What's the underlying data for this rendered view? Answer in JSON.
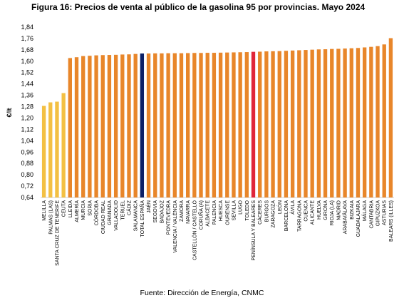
{
  "title": "Figura 16: Precios de venta al público de la gasolina 95 por provincias. Mayo 2024",
  "source": "Fuente: Dirección de Energía, CNMC",
  "colors": {
    "yellow": "#f3c043",
    "orange": "#e8862a",
    "navy": "#0b1f66",
    "red": "#e0263a"
  },
  "chart_data": {
    "type": "bar",
    "title": "Figura 16: Precios de venta al público de la gasolina 95 por provincias. Mayo 2024",
    "ylabel": "€/lt",
    "xlabel": "",
    "ylim": [
      0.64,
      1.84
    ],
    "yticks": [
      "0,64",
      "0,72",
      "0,80",
      "0,88",
      "0,96",
      "1,04",
      "1,12",
      "1,20",
      "1,28",
      "1,36",
      "1,44",
      "1,52",
      "1,60",
      "1,68",
      "1,76",
      "1,84"
    ],
    "grid": false,
    "legend": "none",
    "categories": [
      "MELILLA",
      "PALMAS (LAS)",
      "SANTA CRUZ DE TENERIFE",
      "CEUTA",
      "LLEIDA",
      "ALMERÍA",
      "MURCIA",
      "SORIA",
      "CÓRDOBA",
      "CIUDAD REAL",
      "GRANADA",
      "VALLADOLID",
      "TERUEL",
      "CÁDIZ",
      "SALAMANCA",
      "TOTAL ESPAÑA",
      "JAÉN",
      "SEGOVIA",
      "BADAJOZ",
      "PONTEVEDRA",
      "VALENCIA / VALÈNCIA",
      "ZAMORA",
      "NAVARRA",
      "CASTELLÓN / CASTELLÓ",
      "CORUÑA (A)",
      "ALBACETE",
      "PALENCIA",
      "HUESCA",
      "OURENSE",
      "SEVILLA",
      "LUGO",
      "TOLEDO",
      "PENÍNSULA Y BALEARES",
      "CÁCERES",
      "BURGOS",
      "ZARAGOZA",
      "LEÓN",
      "BARCELONA",
      "ÁVILA",
      "TARRAGONA",
      "CUENCA",
      "ALICANTE",
      "HUELVA",
      "GIRONA",
      "RIOJA (LA)",
      "MADRID",
      "ARABA/ÁLAVA",
      "BIZKAIA",
      "GUADALAJARA",
      "MÁLAGA",
      "CANTABRIA",
      "GIPUZKOA",
      "ASTURIAS",
      "BALEARS (ILLES)"
    ],
    "values": [
      1.285,
      1.31,
      1.315,
      1.375,
      1.622,
      1.628,
      1.636,
      1.638,
      1.641,
      1.643,
      1.644,
      1.645,
      1.647,
      1.648,
      1.651,
      1.654,
      1.654,
      1.655,
      1.655,
      1.656,
      1.656,
      1.656,
      1.657,
      1.658,
      1.658,
      1.659,
      1.659,
      1.66,
      1.661,
      1.662,
      1.663,
      1.664,
      1.666,
      1.667,
      1.669,
      1.67,
      1.671,
      1.673,
      1.675,
      1.677,
      1.679,
      1.681,
      1.683,
      1.684,
      1.686,
      1.687,
      1.689,
      1.691,
      1.693,
      1.697,
      1.701,
      1.706,
      1.718,
      1.762
    ],
    "bar_colors": [
      "yellow",
      "yellow",
      "yellow",
      "yellow",
      "orange",
      "orange",
      "orange",
      "orange",
      "orange",
      "orange",
      "orange",
      "orange",
      "orange",
      "orange",
      "orange",
      "navy",
      "orange",
      "orange",
      "orange",
      "orange",
      "orange",
      "orange",
      "orange",
      "orange",
      "orange",
      "orange",
      "orange",
      "orange",
      "orange",
      "orange",
      "orange",
      "orange",
      "red",
      "orange",
      "orange",
      "orange",
      "orange",
      "orange",
      "orange",
      "orange",
      "orange",
      "orange",
      "orange",
      "orange",
      "orange",
      "orange",
      "orange",
      "orange",
      "orange",
      "orange",
      "orange",
      "orange",
      "orange",
      "orange"
    ]
  }
}
